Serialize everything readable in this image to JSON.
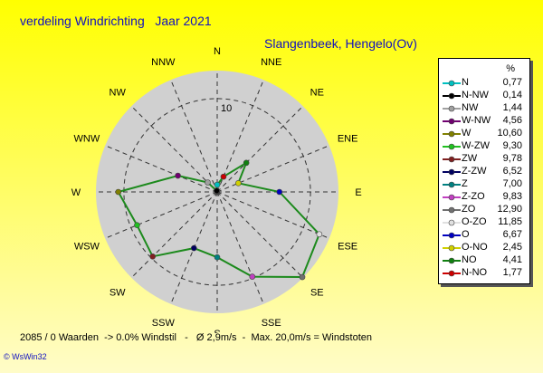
{
  "title": "verdeling Windrichting   Jaar 2021",
  "subtitle": "Slangenbeek, Hengelo(Ov)",
  "legend_header": "%",
  "footer": "2085 / 0 Waarden  -> 0.0% Windstil   -   Ø 2,9m/s  -  Max. 20,0m/s = Windstoten",
  "brand": "© WsWin32",
  "chart_data": {
    "type": "radar",
    "radial_max": 13,
    "radial_tick": 10,
    "radial_tick_label": "10",
    "directions": [
      "N",
      "NNE",
      "NE",
      "ENE",
      "E",
      "ESE",
      "SE",
      "SSE",
      "S",
      "SSW",
      "SW",
      "WSW",
      "W",
      "WNW",
      "NW",
      "NNW"
    ],
    "values": [
      0.77,
      1.77,
      4.41,
      2.45,
      6.67,
      11.85,
      12.9,
      9.83,
      7.0,
      6.52,
      9.78,
      9.3,
      10.6,
      4.56,
      1.44,
      0.14
    ],
    "line_color": "#1c8a1c",
    "marker_colors": [
      "#00c0c0",
      "#cc0000",
      "#108010",
      "#d0d000",
      "#0000c0",
      "#e0e0e0",
      "#707070",
      "#c040c0",
      "#008080",
      "#000060",
      "#802020",
      "#20c020",
      "#808000",
      "#700070",
      "#a0a0a0",
      "#000000"
    ],
    "legend": [
      {
        "label": "N",
        "value": "0,77",
        "color": "#00c0c0"
      },
      {
        "label": "N-NW",
        "value": "0,14",
        "color": "#000000"
      },
      {
        "label": "NW",
        "value": "1,44",
        "color": "#a0a0a0"
      },
      {
        "label": "W-NW",
        "value": "4,56",
        "color": "#700070"
      },
      {
        "label": "W",
        "value": "10,60",
        "color": "#808000"
      },
      {
        "label": "W-ZW",
        "value": "9,30",
        "color": "#20c020"
      },
      {
        "label": "ZW",
        "value": "9,78",
        "color": "#802020"
      },
      {
        "label": "Z-ZW",
        "value": "6,52",
        "color": "#000060"
      },
      {
        "label": "Z",
        "value": "7,00",
        "color": "#008080"
      },
      {
        "label": "Z-ZO",
        "value": "9,83",
        "color": "#c040c0"
      },
      {
        "label": "ZO",
        "value": "12,90",
        "color": "#707070"
      },
      {
        "label": "O-ZO",
        "value": "11,85",
        "color": "#e0e0e0"
      },
      {
        "label": "O",
        "value": "6,67",
        "color": "#0000c0"
      },
      {
        "label": "O-NO",
        "value": "2,45",
        "color": "#d0d000"
      },
      {
        "label": "NO",
        "value": "4,41",
        "color": "#108010"
      },
      {
        "label": "N-NO",
        "value": "1,77",
        "color": "#cc0000"
      }
    ]
  }
}
